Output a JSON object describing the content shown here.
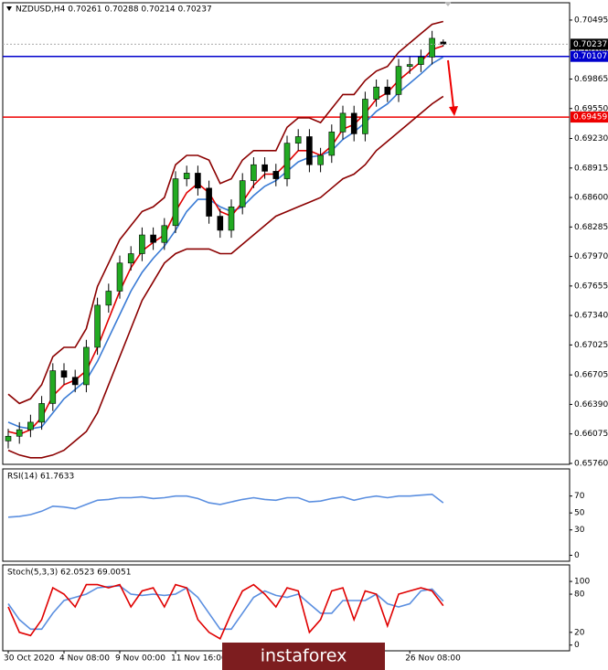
{
  "chart_data": [
    {
      "type": "candlestick",
      "title": "NZDUSD,H4  0.70261 0.70288 0.70214 0.70237",
      "categories": [
        "30 Oct 2020",
        null,
        null,
        null,
        null,
        "4 Nov 08:00",
        null,
        null,
        null,
        null,
        "9 Nov 00:00",
        null,
        null,
        null,
        null,
        "11 Nov 16:00",
        null,
        null,
        null,
        null,
        null,
        null,
        null,
        null,
        null,
        null,
        null,
        null,
        null,
        null,
        null,
        null,
        null,
        null,
        null,
        null,
        "26 Nov 08:00",
        null,
        null,
        null
      ],
      "open": [
        0.66,
        0.6605,
        0.6612,
        0.662,
        0.664,
        0.6675,
        0.6668,
        0.666,
        0.67,
        0.6745,
        0.676,
        0.679,
        0.68,
        0.682,
        0.6812,
        0.683,
        0.688,
        0.6886,
        0.687,
        0.684,
        0.6825,
        0.685,
        0.6878,
        0.6895,
        0.6888,
        0.688,
        0.6918,
        0.6925,
        0.6895,
        0.6905,
        0.693,
        0.695,
        0.6928,
        0.6965,
        0.6978,
        0.697,
        0.7,
        0.7002,
        0.701,
        0.70261
      ],
      "high": [
        0.6613,
        0.662,
        0.6628,
        0.6648,
        0.6683,
        0.6683,
        0.6676,
        0.6708,
        0.6753,
        0.6768,
        0.6798,
        0.6808,
        0.6828,
        0.6828,
        0.6838,
        0.6888,
        0.6894,
        0.6894,
        0.6878,
        0.6848,
        0.6858,
        0.6886,
        0.6903,
        0.6903,
        0.6896,
        0.6926,
        0.6933,
        0.6933,
        0.6913,
        0.6938,
        0.6958,
        0.6958,
        0.6973,
        0.6986,
        0.6986,
        0.7008,
        0.701,
        0.7018,
        0.7038,
        0.70288
      ],
      "low": [
        0.6592,
        0.6597,
        0.6604,
        0.6612,
        0.6632,
        0.666,
        0.6652,
        0.6652,
        0.6692,
        0.6737,
        0.6752,
        0.6782,
        0.6792,
        0.6804,
        0.6804,
        0.6822,
        0.6872,
        0.6862,
        0.6832,
        0.6817,
        0.6817,
        0.6842,
        0.687,
        0.688,
        0.6872,
        0.6872,
        0.691,
        0.6887,
        0.6887,
        0.6897,
        0.6922,
        0.692,
        0.692,
        0.6957,
        0.6962,
        0.6962,
        0.6992,
        0.6994,
        0.7002,
        0.70214
      ],
      "close": [
        0.6605,
        0.6612,
        0.662,
        0.664,
        0.6675,
        0.6668,
        0.666,
        0.67,
        0.6745,
        0.676,
        0.679,
        0.68,
        0.682,
        0.6812,
        0.683,
        0.688,
        0.6886,
        0.687,
        0.684,
        0.6825,
        0.685,
        0.6878,
        0.6895,
        0.6888,
        0.688,
        0.6918,
        0.6925,
        0.6895,
        0.6905,
        0.693,
        0.695,
        0.6928,
        0.6965,
        0.6978,
        0.697,
        0.7,
        0.7002,
        0.701,
        0.703,
        0.70237
      ],
      "up_color": "#22aa22",
      "down_color": "#000000",
      "series": [
        {
          "color": "#8b0000",
          "values": [
            0.665,
            0.664,
            0.6645,
            0.666,
            0.669,
            0.67,
            0.67,
            0.672,
            0.6765,
            0.679,
            0.6815,
            0.683,
            0.6845,
            0.685,
            0.686,
            0.6895,
            0.6905,
            0.6905,
            0.69,
            0.6875,
            0.688,
            0.69,
            0.691,
            0.691,
            0.691,
            0.6935,
            0.6945,
            0.6945,
            0.694,
            0.6955,
            0.697,
            0.697,
            0.6985,
            0.6995,
            0.7,
            0.7015,
            0.7025,
            0.7035,
            0.7045,
            0.7048
          ]
        },
        {
          "color": "#8b0000",
          "values": [
            0.659,
            0.6585,
            0.6582,
            0.6582,
            0.6585,
            0.659,
            0.66,
            0.661,
            0.663,
            0.666,
            0.669,
            0.672,
            0.675,
            0.677,
            0.679,
            0.68,
            0.6805,
            0.6805,
            0.6805,
            0.68,
            0.68,
            0.681,
            0.682,
            0.683,
            0.684,
            0.6845,
            0.685,
            0.6855,
            0.686,
            0.687,
            0.688,
            0.6885,
            0.6895,
            0.691,
            0.692,
            0.693,
            0.694,
            0.695,
            0.696,
            0.6968
          ]
        },
        {
          "color": "#3a7bd5",
          "values": [
            0.662,
            0.6615,
            0.6613,
            0.6615,
            0.663,
            0.6645,
            0.6655,
            0.6665,
            0.6685,
            0.671,
            0.6735,
            0.676,
            0.678,
            0.6795,
            0.6808,
            0.6825,
            0.6845,
            0.6858,
            0.6858,
            0.685,
            0.6845,
            0.685,
            0.6862,
            0.6872,
            0.6878,
            0.6888,
            0.6898,
            0.6903,
            0.6905,
            0.691,
            0.6922,
            0.693,
            0.694,
            0.6952,
            0.696,
            0.6972,
            0.6982,
            0.6992,
            0.7003,
            0.701
          ]
        },
        {
          "color": "#e00000",
          "values": [
            0.661,
            0.6607,
            0.6612,
            0.6625,
            0.6648,
            0.666,
            0.6665,
            0.6675,
            0.67,
            0.673,
            0.676,
            0.6785,
            0.6803,
            0.6812,
            0.682,
            0.6845,
            0.6865,
            0.6875,
            0.6865,
            0.6845,
            0.684,
            0.6855,
            0.6873,
            0.6885,
            0.6885,
            0.6897,
            0.691,
            0.691,
            0.6905,
            0.6915,
            0.6933,
            0.6938,
            0.695,
            0.6965,
            0.6972,
            0.6985,
            0.6995,
            0.7005,
            0.7018,
            0.7022
          ]
        }
      ],
      "hlines": [
        {
          "value": 0.70107,
          "color": "#0000cc"
        },
        {
          "value": 0.69459,
          "color": "#ee0000"
        }
      ],
      "ylim": [
        0.6575,
        0.7068
      ],
      "yticks": [
        {
          "value": 0.70495,
          "label": "0.70495"
        },
        {
          "value": 0.7018,
          "label": "0.70180"
        },
        {
          "value": 0.69865,
          "label": "0.69865"
        },
        {
          "value": 0.6955,
          "label": "0.69550"
        },
        {
          "value": 0.6923,
          "label": "0.69230"
        },
        {
          "value": 0.68915,
          "label": "0.68915"
        },
        {
          "value": 0.686,
          "label": "0.68600"
        },
        {
          "value": 0.68285,
          "label": "0.68285"
        },
        {
          "value": 0.6797,
          "label": "0.67970"
        },
        {
          "value": 0.67655,
          "label": "0.67655"
        },
        {
          "value": 0.6734,
          "label": "0.67340"
        },
        {
          "value": 0.67025,
          "label": "0.67025"
        },
        {
          "value": 0.66705,
          "label": "0.66705"
        },
        {
          "value": 0.6639,
          "label": "0.66390"
        },
        {
          "value": 0.66075,
          "label": "0.66075"
        },
        {
          "value": 0.6576,
          "label": "0.65760"
        }
      ]
    },
    {
      "type": "line",
      "title": "RSI(14) 61.7633",
      "series": [
        {
          "color": "#5b8fe0",
          "values": [
            45,
            46,
            48,
            52,
            58,
            57,
            55,
            60,
            65,
            66,
            68,
            68,
            69,
            67,
            68,
            70,
            70,
            67,
            62,
            60,
            63,
            66,
            68,
            66,
            65,
            68,
            68,
            63,
            64,
            67,
            69,
            65,
            68,
            70,
            68,
            70,
            70,
            71,
            72,
            62
          ]
        }
      ],
      "ylim": [
        -7,
        102
      ],
      "yticks": [
        0,
        30,
        50,
        70
      ]
    },
    {
      "type": "line",
      "title": "Stoch(5,3,3) 62.0523 69.0051",
      "series": [
        {
          "color": "#5b8fe0",
          "values": [
            65,
            40,
            25,
            25,
            50,
            70,
            75,
            80,
            90,
            92,
            93,
            80,
            78,
            80,
            78,
            80,
            90,
            75,
            50,
            25,
            25,
            50,
            75,
            85,
            78,
            75,
            80,
            65,
            50,
            50,
            70,
            70,
            70,
            80,
            65,
            60,
            65,
            85,
            88,
            69
          ]
        },
        {
          "color": "#e00000",
          "values": [
            60,
            20,
            15,
            40,
            90,
            80,
            60,
            95,
            95,
            90,
            95,
            60,
            85,
            90,
            60,
            95,
            90,
            40,
            20,
            10,
            50,
            85,
            95,
            80,
            60,
            90,
            85,
            20,
            40,
            85,
            90,
            40,
            85,
            80,
            30,
            80,
            85,
            90,
            85,
            62
          ]
        }
      ],
      "ylim": [
        -9,
        126
      ],
      "yticks": [
        0,
        20,
        80,
        100
      ]
    }
  ],
  "watermark": "instaforex"
}
